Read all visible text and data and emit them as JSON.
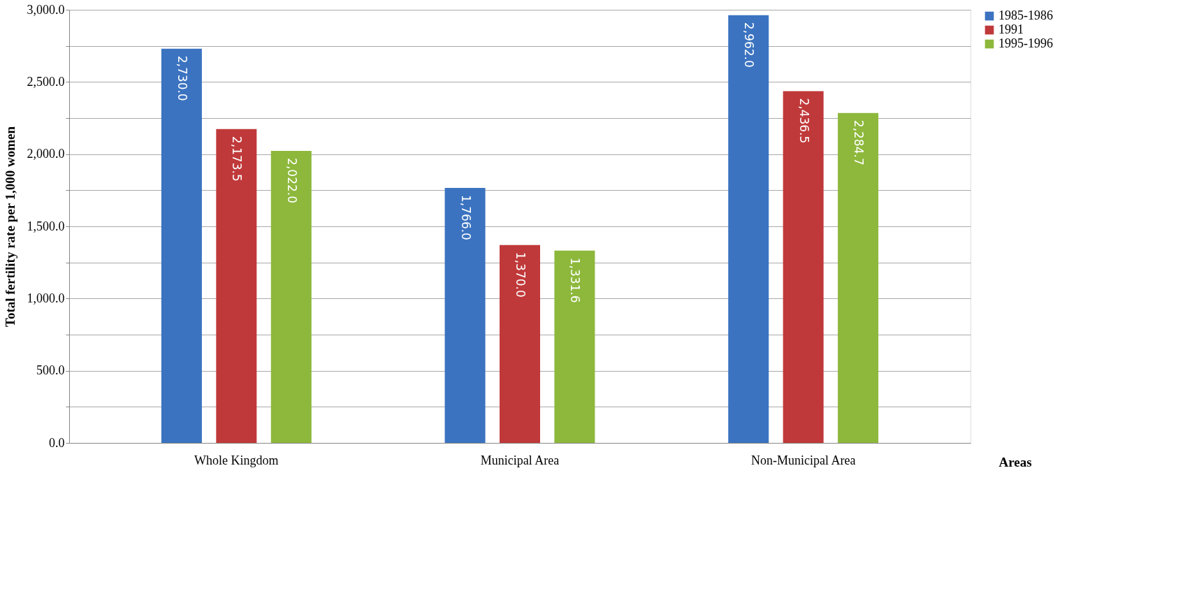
{
  "chart_data": {
    "type": "bar",
    "xlabel": "Areas",
    "ylabel": "Total fertility rate per 1,000 women",
    "categories": [
      "Whole Kingdom",
      "Municipal Area",
      "Non-Municipal Area"
    ],
    "series": [
      {
        "name": "1985-1986",
        "color": "#3b73c0",
        "values": [
          2730.0,
          1766.0,
          2962.0
        ],
        "value_labels": [
          "2,730.0",
          "1,766.0",
          "2,962.0"
        ]
      },
      {
        "name": "1991",
        "color": "#c0393a",
        "values": [
          2173.5,
          1370.0,
          2436.5
        ],
        "value_labels": [
          "2,173.5",
          "1,370.0",
          "2,436.5"
        ]
      },
      {
        "name": "1995-1996",
        "color": "#8db83c",
        "values": [
          2022.0,
          1331.6,
          2284.7
        ],
        "value_labels": [
          "2,022.0",
          "1,331.6",
          "2,284.7"
        ]
      }
    ],
    "ylim": [
      0,
      3000
    ],
    "yticks": [
      {
        "value": 0,
        "label": "0.0"
      },
      {
        "value": 250,
        "label": null
      },
      {
        "value": 500,
        "label": "500.0"
      },
      {
        "value": 750,
        "label": null
      },
      {
        "value": 1000,
        "label": "1,000.0"
      },
      {
        "value": 1250,
        "label": null
      },
      {
        "value": 1500,
        "label": "1,500.0"
      },
      {
        "value": 1750,
        "label": null
      },
      {
        "value": 2000,
        "label": "2,000.0"
      },
      {
        "value": 2250,
        "label": null
      },
      {
        "value": 2500,
        "label": "2,500.0"
      },
      {
        "value": 2750,
        "label": null
      },
      {
        "value": 3000,
        "label": "3,000.0"
      }
    ],
    "grid": "y",
    "legend": "right"
  }
}
